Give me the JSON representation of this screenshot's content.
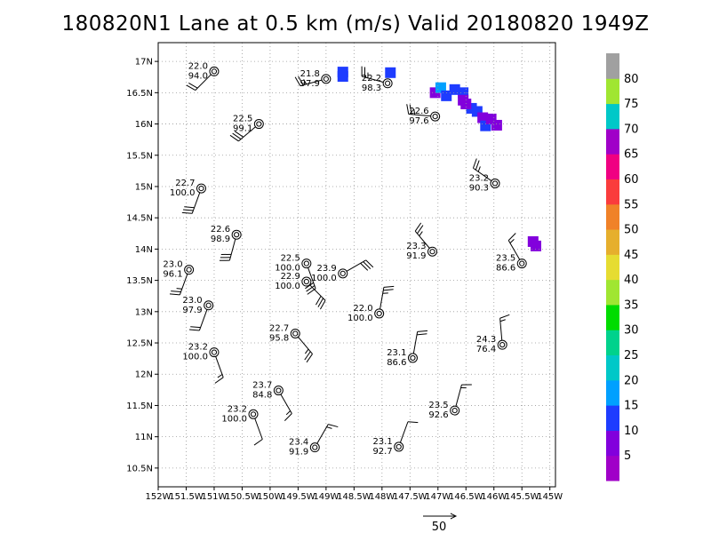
{
  "title": "180820N1 Lane at 0.5 km (m/s) Valid 20180820  1949Z",
  "chart_data": {
    "type": "scatter",
    "title": "180820N1 Lane at 0.5 km (m/s) Valid 20180820  1949Z",
    "xlim": [
      -152.0,
      -144.9
    ],
    "ylim": [
      10.2,
      17.3
    ],
    "grid": true,
    "x_ticks": [
      {
        "value": -152.0,
        "label": "152W"
      },
      {
        "value": -151.5,
        "label": "151.5W"
      },
      {
        "value": -151.0,
        "label": "151W"
      },
      {
        "value": -150.5,
        "label": "150.5W"
      },
      {
        "value": -150.0,
        "label": "150W"
      },
      {
        "value": -149.5,
        "label": "149.5W"
      },
      {
        "value": -149.0,
        "label": "149W"
      },
      {
        "value": -148.5,
        "label": "148.5W"
      },
      {
        "value": -148.0,
        "label": "148W"
      },
      {
        "value": -147.5,
        "label": "147.5W"
      },
      {
        "value": -147.0,
        "label": "147W"
      },
      {
        "value": -146.5,
        "label": "146.5W"
      },
      {
        "value": -146.0,
        "label": "146W"
      },
      {
        "value": -145.5,
        "label": "145.5W"
      },
      {
        "value": -145.0,
        "label": "145W"
      }
    ],
    "y_ticks": [
      {
        "value": 10.5,
        "label": "10.5N"
      },
      {
        "value": 11.0,
        "label": "11N"
      },
      {
        "value": 11.5,
        "label": "11.5N"
      },
      {
        "value": 12.0,
        "label": "12N"
      },
      {
        "value": 12.5,
        "label": "12.5N"
      },
      {
        "value": 13.0,
        "label": "13N"
      },
      {
        "value": 13.5,
        "label": "13.5N"
      },
      {
        "value": 14.0,
        "label": "14N"
      },
      {
        "value": 14.5,
        "label": "14.5N"
      },
      {
        "value": 15.0,
        "label": "15N"
      },
      {
        "value": 15.5,
        "label": "15.5N"
      },
      {
        "value": 16.0,
        "label": "16N"
      },
      {
        "value": 16.5,
        "label": "16.5N"
      },
      {
        "value": 17.0,
        "label": "17N"
      }
    ],
    "stations": [
      {
        "lon": -151.0,
        "lat": 16.84,
        "t": "22.0",
        "p": "94.0",
        "ws": 20,
        "wd": 225
      },
      {
        "lon": -149.0,
        "lat": 16.72,
        "t": "21.8",
        "p": "97.9",
        "ws": 25,
        "wd": 255
      },
      {
        "lon": -147.9,
        "lat": 16.65,
        "t": "22.2",
        "p": "98.3",
        "ws": 25,
        "wd": 285
      },
      {
        "lon": -147.05,
        "lat": 16.12,
        "t": "22.6",
        "p": "97.6",
        "ws": 25,
        "wd": 275
      },
      {
        "lon": -150.2,
        "lat": 16.0,
        "t": "22.5",
        "p": "99.1",
        "ws": 30,
        "wd": 230
      },
      {
        "lon": -151.23,
        "lat": 14.97,
        "t": "22.7",
        "p": "100.0",
        "ws": 30,
        "wd": 200
      },
      {
        "lon": -145.98,
        "lat": 15.05,
        "t": "23.2",
        "p": "90.3",
        "ws": 25,
        "wd": 305
      },
      {
        "lon": -150.6,
        "lat": 14.23,
        "t": "22.6",
        "p": "98.9",
        "ws": 30,
        "wd": 195
      },
      {
        "lon": -151.45,
        "lat": 13.67,
        "t": "23.0",
        "p": "96.1",
        "ws": 25,
        "wd": 200
      },
      {
        "lon": -149.35,
        "lat": 13.77,
        "t": "22.5",
        "p": "100.0",
        "ws": 30,
        "wd": 160
      },
      {
        "lon": -148.7,
        "lat": 13.61,
        "t": "23.9",
        "p": "100.0",
        "ws": 30,
        "wd": 60
      },
      {
        "lon": -149.35,
        "lat": 13.48,
        "t": "22.9",
        "p": "100.0",
        "ws": 30,
        "wd": 135
      },
      {
        "lon": -147.1,
        "lat": 13.96,
        "t": "23.3",
        "p": "91.9",
        "ws": 25,
        "wd": 320
      },
      {
        "lon": -145.5,
        "lat": 13.77,
        "t": "23.5",
        "p": "86.6",
        "ws": 15,
        "wd": 330
      },
      {
        "lon": -151.1,
        "lat": 13.1,
        "t": "23.0",
        "p": "97.9",
        "ws": 20,
        "wd": 200
      },
      {
        "lon": -148.05,
        "lat": 12.97,
        "t": "22.0",
        "p": "100.0",
        "ws": 25,
        "wd": 10
      },
      {
        "lon": -149.55,
        "lat": 12.65,
        "t": "22.7",
        "p": "95.8",
        "ws": 25,
        "wd": 140
      },
      {
        "lon": -151.0,
        "lat": 12.35,
        "t": "23.2",
        "p": "100.0",
        "ws": 15,
        "wd": 160
      },
      {
        "lon": -147.45,
        "lat": 12.26,
        "t": "23.1",
        "p": "86.6",
        "ws": 20,
        "wd": 10
      },
      {
        "lon": -145.85,
        "lat": 12.47,
        "t": "24.3",
        "p": "76.4",
        "ws": 15,
        "wd": 355
      },
      {
        "lon": -149.85,
        "lat": 11.74,
        "t": "23.7",
        "p": "84.8",
        "ws": 15,
        "wd": 150
      },
      {
        "lon": -150.3,
        "lat": 11.36,
        "t": "23.2",
        "p": "100.0",
        "ws": 10,
        "wd": 160
      },
      {
        "lon": -146.7,
        "lat": 11.42,
        "t": "23.5",
        "p": "92.6",
        "ws": 15,
        "wd": 15
      },
      {
        "lon": -149.2,
        "lat": 10.83,
        "t": "23.4",
        "p": "91.9",
        "ws": 15,
        "wd": 30
      },
      {
        "lon": -147.7,
        "lat": 10.84,
        "t": "23.1",
        "p": "92.7",
        "ws": 10,
        "wd": 20
      }
    ],
    "rain_cells": [
      {
        "lon": -148.7,
        "lat": 16.83,
        "v": 14
      },
      {
        "lon": -148.7,
        "lat": 16.76,
        "v": 14
      },
      {
        "lon": -147.85,
        "lat": 16.82,
        "v": 14
      },
      {
        "lon": -147.05,
        "lat": 16.5,
        "v": 9
      },
      {
        "lon": -146.95,
        "lat": 16.58,
        "v": 15
      },
      {
        "lon": -146.85,
        "lat": 16.45,
        "v": 14
      },
      {
        "lon": -146.7,
        "lat": 16.55,
        "v": 14
      },
      {
        "lon": -146.55,
        "lat": 16.5,
        "v": 14
      },
      {
        "lon": -146.55,
        "lat": 16.38,
        "v": 8
      },
      {
        "lon": -146.4,
        "lat": 16.25,
        "v": 14
      },
      {
        "lon": -146.3,
        "lat": 16.2,
        "v": 14
      },
      {
        "lon": -146.2,
        "lat": 16.1,
        "v": 8
      },
      {
        "lon": -146.15,
        "lat": 15.97,
        "v": 14
      },
      {
        "lon": -146.05,
        "lat": 16.08,
        "v": 9
      },
      {
        "lon": -145.95,
        "lat": 15.98,
        "v": 8
      },
      {
        "lon": -146.5,
        "lat": 16.32,
        "v": 9
      },
      {
        "lon": -145.3,
        "lat": 14.12,
        "v": 8
      },
      {
        "lon": -145.25,
        "lat": 14.05,
        "v": 8
      }
    ],
    "colorbar": {
      "labels": [
        "5",
        "10",
        "15",
        "20",
        "25",
        "30",
        "35",
        "40",
        "45",
        "50",
        "55",
        "60",
        "65",
        "70",
        "75",
        "80"
      ],
      "colors": [
        "#a000c8",
        "#8200dc",
        "#1e3cff",
        "#00a0ff",
        "#00c8c8",
        "#00d28c",
        "#00dc00",
        "#a0e632",
        "#e6dc32",
        "#e6af2d",
        "#f08228",
        "#fa3c3c",
        "#f00082",
        "#a000c8",
        "#00c8c8",
        "#a0e632",
        "#a0a0a0"
      ]
    },
    "scale_arrow_label": "50"
  }
}
